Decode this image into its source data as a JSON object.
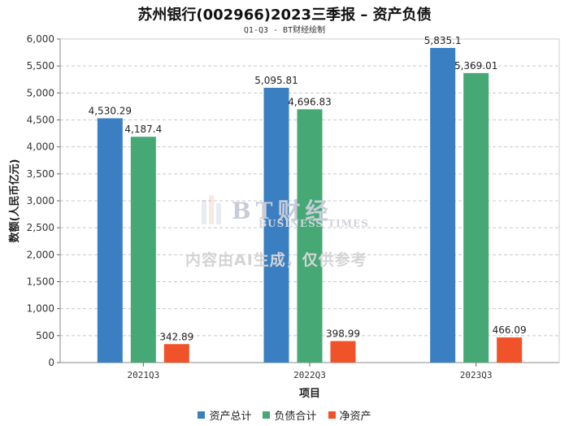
{
  "chart_data": {
    "type": "bar",
    "title": "苏州银行(002966)2023三季报 – 资产负债",
    "subtitle": "Q1-Q3 - BT财经绘制",
    "xlabel": "项目",
    "ylabel": "数额(人民币亿元)",
    "categories": [
      "2021Q3",
      "2022Q3",
      "2023Q3"
    ],
    "ylim": [
      0,
      6000
    ],
    "yticks": [
      0,
      500,
      1000,
      1500,
      2000,
      2500,
      3000,
      3500,
      4000,
      4500,
      5000,
      5500,
      6000
    ],
    "ytick_labels": [
      "0",
      "500",
      "1,000",
      "1,500",
      "2,000",
      "2,500",
      "3,000",
      "3,500",
      "4,000",
      "4,500",
      "5,000",
      "5,500",
      "6,000"
    ],
    "grid": true,
    "legend_position": "bottom",
    "series": [
      {
        "name": "资产总计",
        "color": "#3a7fc1",
        "values": [
          4530.29,
          5095.81,
          5835.1
        ],
        "labels": [
          "4,530.29",
          "5,095.81",
          "5,835.1"
        ]
      },
      {
        "name": "负债合计",
        "color": "#45a875",
        "values": [
          4187.4,
          4696.83,
          5369.01
        ],
        "labels": [
          "4,187.4",
          "4,696.83",
          "5,369.01"
        ]
      },
      {
        "name": "净资产",
        "color": "#f0522a",
        "values": [
          342.89,
          398.99,
          466.09
        ],
        "labels": [
          "342.89",
          "398.99",
          "466.09"
        ]
      }
    ]
  },
  "watermark": {
    "brand": "BT财经",
    "brand_sub": "BUSINESS TIMES",
    "note": "内容由AI生成，仅供参考"
  }
}
